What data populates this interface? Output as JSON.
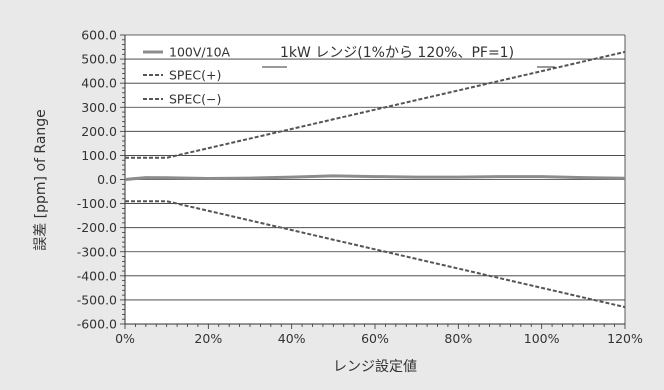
{
  "chart_data": {
    "type": "line",
    "title": "1kW レンジ(1%から 120%、PF=1)",
    "xlabel": "レンジ設定値",
    "ylabel": "誤差 [ppm] of Range",
    "xlim": [
      0,
      120
    ],
    "ylim": [
      -600,
      600
    ],
    "x_ticks": [
      "0%",
      "20%",
      "40%",
      "60%",
      "80%",
      "100%",
      "120%"
    ],
    "x_tick_values": [
      0,
      20,
      40,
      60,
      80,
      100,
      120
    ],
    "y_ticks": [
      "600.0",
      "500.0",
      "400.0",
      "300.0",
      "200.0",
      "100.0",
      "0.0",
      "-100.0",
      "-200.0",
      "-300.0",
      "-400.0",
      "-500.0",
      "-600.0"
    ],
    "y_tick_values": [
      600,
      500,
      400,
      300,
      200,
      100,
      0,
      -100,
      -200,
      -300,
      -400,
      -500,
      -600
    ],
    "grid": "horizontal",
    "legend_position": "top-left",
    "series": [
      {
        "name": "100V/10A",
        "color": "#8c8c8c",
        "style": "solid",
        "x": [
          0,
          5,
          10,
          20,
          30,
          40,
          50,
          60,
          70,
          80,
          90,
          100,
          110,
          120
        ],
        "y": [
          0,
          8,
          7,
          4,
          6,
          10,
          15,
          12,
          10,
          10,
          12,
          12,
          8,
          5
        ]
      },
      {
        "name": "SPEC(+)",
        "color": "#555555",
        "style": "dashed",
        "x": [
          0,
          10,
          120
        ],
        "y": [
          90,
          90,
          530
        ]
      },
      {
        "name": "SPEC(−)",
        "color": "#555555",
        "style": "dashed",
        "x": [
          0,
          10,
          120
        ],
        "y": [
          -90,
          -90,
          -530
        ]
      }
    ]
  }
}
